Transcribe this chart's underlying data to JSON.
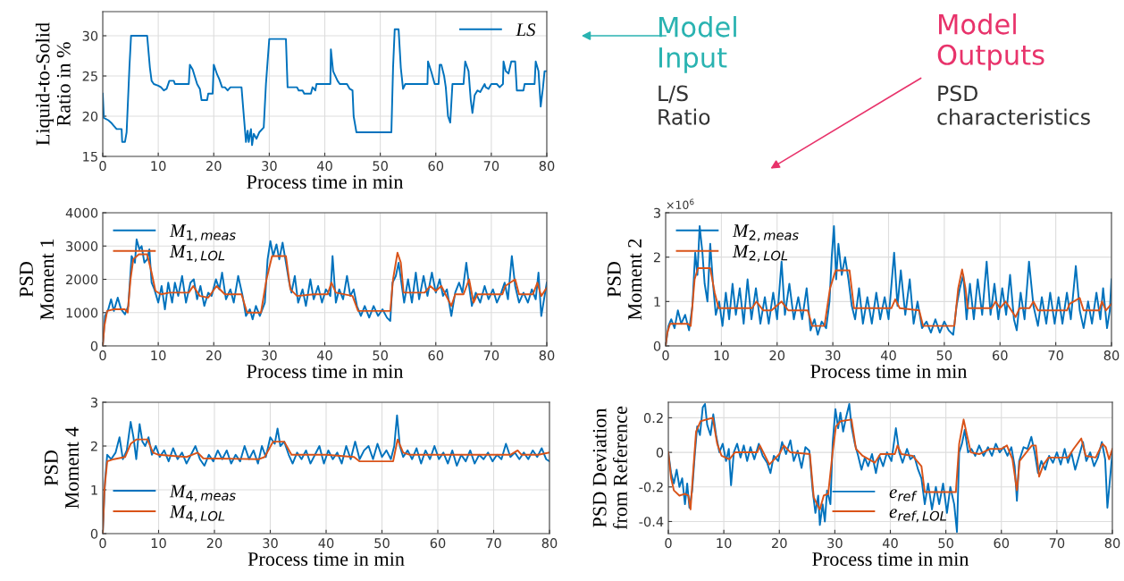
{
  "chart_data": [
    {
      "type": "line",
      "ylabel": "Liquid-to-Solid\nRatio in %",
      "xlabel": "Process time in min",
      "xlim": [
        0,
        80
      ],
      "xticks": [
        0,
        10,
        20,
        30,
        40,
        50,
        60,
        70,
        80
      ],
      "ylim": [
        15,
        33
      ],
      "yticks": [
        15,
        20,
        25,
        30
      ],
      "grid": true,
      "legend": "top right",
      "line_style": "solid",
      "series": [
        {
          "name": "LS",
          "color": "#0072bd",
          "x": [
            0,
            0.2,
            1,
            1.5,
            2,
            2.5,
            3.4,
            3.5,
            4,
            4.3,
            4.8,
            5.1,
            8,
            8.5,
            8.8,
            9.2,
            10,
            10.5,
            11,
            11.5,
            12,
            12.8,
            13,
            15.5,
            15.7,
            16.2,
            17,
            17.5,
            17.8,
            18.8,
            19,
            19.8,
            20,
            20.6,
            21,
            21.5,
            22,
            22.5,
            23,
            25,
            25.3,
            25.8,
            26.1,
            26.3,
            26.7,
            26.9,
            27.2,
            27.7,
            28.2,
            29,
            29.4,
            30,
            33,
            33.3,
            35,
            35.3,
            36,
            36.3,
            37.5,
            37.8,
            38.3,
            38.5,
            41,
            41.1,
            41.5,
            42.3,
            42.7,
            44,
            44.5,
            45,
            45.2,
            45.7,
            52,
            52.3,
            52.6,
            53.3,
            53.7,
            54.1,
            54.5,
            58.5,
            58.6,
            59.2,
            59.8,
            60.5,
            60.7,
            61,
            61.5,
            61.8,
            62.2,
            62.6,
            63,
            65,
            65.3,
            65.9,
            66.3,
            66.6,
            67,
            67.5,
            68,
            68.8,
            69,
            69.5,
            70,
            71,
            71.5,
            72.1,
            72.2,
            72.6,
            73.1,
            73.6,
            74.3,
            74.6,
            75.8,
            76,
            77.8,
            78,
            78.5,
            78.9,
            79.3,
            79.6,
            80
          ],
          "values": [
            22.8,
            19.8,
            19.5,
            19.2,
            18.8,
            18.4,
            18.4,
            16.8,
            16.8,
            18,
            26,
            30,
            30,
            26,
            24.4,
            24,
            23.8,
            23.6,
            23.2,
            23.4,
            24.4,
            24.4,
            24,
            24,
            26.4,
            25.8,
            24,
            23.4,
            22,
            22,
            22.8,
            22.8,
            26.4,
            25.2,
            24.6,
            23.6,
            23.6,
            23.2,
            23.6,
            23.6,
            21,
            16.8,
            18.2,
            16.8,
            18.4,
            16.4,
            17.8,
            17.2,
            18,
            18.6,
            24,
            29.6,
            29.6,
            23.6,
            23.6,
            23.2,
            23.2,
            22.8,
            22.8,
            23.6,
            23.2,
            24,
            24,
            28.3,
            25.6,
            24.4,
            24,
            24,
            23.4,
            23.2,
            20,
            18,
            18,
            26,
            30.8,
            30.8,
            26,
            23.4,
            24,
            24,
            26.8,
            25.5,
            24,
            24,
            26.4,
            26.4,
            25,
            23.6,
            20,
            19.2,
            24,
            24,
            26.8,
            25.6,
            22,
            20.4,
            22.6,
            23.2,
            23,
            24,
            23.6,
            23.4,
            24,
            24,
            23.6,
            24,
            26.8,
            25.6,
            25.3,
            26.8,
            26.8,
            23.2,
            23.2,
            24,
            24,
            26.8,
            25.6,
            21.2,
            23.5,
            25.6,
            25.6
          ]
        }
      ]
    },
    {
      "type": "line",
      "ylabel": "PSD\nMoment 1",
      "xlabel": "Process time in min",
      "xlim": [
        0,
        80
      ],
      "xticks": [
        0,
        10,
        20,
        30,
        40,
        50,
        60,
        70,
        80
      ],
      "ylim": [
        0,
        4000
      ],
      "yticks": [
        0,
        1000,
        2000,
        3000,
        4000
      ],
      "grid": true,
      "legend": "top left",
      "line_style": "solid",
      "series": [
        {
          "name": "M$_{1,meas}$",
          "color": "#0072bd",
          "x": [
            0,
            0.4,
            1,
            1.5,
            2,
            2.7,
            3.3,
            4,
            4.6,
            5.2,
            5.8,
            6.1,
            6.6,
            7,
            7.5,
            8,
            8.4,
            8.8,
            9.3,
            10,
            10.6,
            11.2,
            11.8,
            12.5,
            13,
            13.6,
            14.3,
            15,
            15.8,
            16.4,
            17,
            17.6,
            18.3,
            19,
            19.6,
            20.4,
            21,
            21.5,
            22.2,
            23,
            23.6,
            24.4,
            25.2,
            25.8,
            26.5,
            27,
            27.6,
            28.3,
            29.2,
            29.7,
            30.2,
            30.7,
            31.3,
            31.8,
            32.4,
            33,
            33.6,
            34,
            34.6,
            35.2,
            36,
            36.6,
            37.4,
            38,
            38.8,
            39.5,
            40.2,
            41,
            41.4,
            42,
            42.6,
            43.3,
            44,
            44.6,
            45.2,
            45.8,
            46.5,
            47.2,
            48,
            48.8,
            49.6,
            50.4,
            51.2,
            51.8,
            52.2,
            52.8,
            53.3,
            53.8,
            54.3,
            55,
            55.7,
            56.4,
            57,
            57.8,
            58.5,
            59.3,
            60,
            60.7,
            61.3,
            62,
            62.8,
            63.5,
            64.2,
            64.8,
            65.5,
            66,
            66.5,
            67.2,
            68,
            68.8,
            69.5,
            70.3,
            71,
            71.8,
            72.4,
            73,
            73.7,
            74.3,
            75,
            75.8,
            76.6,
            77.3,
            78,
            78.5,
            79,
            79.5,
            80
          ],
          "values": [
            0,
            900,
            1100,
            1400,
            1050,
            1450,
            1100,
            950,
            1200,
            2700,
            2500,
            3200,
            2900,
            3000,
            2500,
            2600,
            2900,
            1900,
            1700,
            1300,
            1800,
            1100,
            1900,
            1300,
            1900,
            1500,
            2100,
            1300,
            1900,
            2000,
            1400,
            1800,
            1200,
            1600,
            1500,
            2000,
            1700,
            2200,
            1400,
            1700,
            1300,
            2100,
            1500,
            900,
            1100,
            800,
            1200,
            900,
            1300,
            2600,
            3150,
            2700,
            3050,
            2600,
            3100,
            2500,
            1900,
            1600,
            2100,
            1300,
            1700,
            1200,
            2000,
            1400,
            1800,
            1300,
            1700,
            1500,
            2700,
            1300,
            1700,
            1400,
            2100,
            1500,
            1700,
            1200,
            900,
            1200,
            850,
            1200,
            900,
            1100,
            850,
            750,
            1900,
            2100,
            2500,
            1900,
            1300,
            2000,
            1300,
            2200,
            1400,
            2100,
            1500,
            2200,
            1600,
            2000,
            1500,
            1700,
            900,
            1600,
            1900,
            1600,
            2500,
            1800,
            1200,
            1600,
            1300,
            1800,
            1400,
            1700,
            1300,
            1600,
            1900,
            1400,
            2700,
            1800,
            1300,
            1600,
            1300,
            1700,
            1400,
            2200,
            900,
            1400,
            1900
          ]
        },
        {
          "name": "M$_{1,LOL}$",
          "color": "#d95319",
          "x": [
            0,
            0.3,
            0.8,
            2,
            4,
            4.5,
            5,
            5.5,
            6.5,
            8,
            8.8,
            9.5,
            10.5,
            12,
            15.5,
            16.3,
            17.5,
            19,
            20.5,
            22,
            25,
            26,
            28.5,
            29.5,
            30.5,
            33,
            33.8,
            35,
            38,
            40.5,
            41.2,
            42,
            45,
            46,
            51.8,
            52.3,
            53.1,
            53.7,
            54.2,
            58,
            59,
            60,
            61,
            62.8,
            63.5,
            65,
            66,
            66.8,
            67.5,
            72,
            72.5,
            74.3,
            75,
            77.5,
            78.3,
            79,
            80
          ],
          "values": [
            0,
            600,
            1050,
            1100,
            1100,
            1000,
            2000,
            2600,
            2750,
            2750,
            2200,
            1650,
            1550,
            1600,
            1600,
            1800,
            1500,
            1450,
            1800,
            1550,
            1550,
            1000,
            1000,
            2000,
            2700,
            2700,
            1700,
            1500,
            1550,
            1550,
            1900,
            1600,
            1500,
            1050,
            1050,
            2000,
            2800,
            2500,
            1600,
            1600,
            1800,
            1650,
            1800,
            1200,
            1550,
            1550,
            2000,
            1300,
            1550,
            1550,
            1800,
            2000,
            1550,
            1550,
            1900,
            1500,
            1750
          ]
        }
      ]
    },
    {
      "type": "line",
      "ylabel": "PSD\nMoment 2",
      "xlabel": "Process time in min",
      "annotations": [
        "×10$^{6}$"
      ],
      "xlim": [
        0,
        80
      ],
      "xticks": [
        0,
        10,
        20,
        30,
        40,
        50,
        60,
        70,
        80
      ],
      "ylim": [
        0,
        3
      ],
      "yticks": [
        0,
        1,
        2,
        3
      ],
      "grid": true,
      "legend": "top left",
      "line_style": "solid",
      "series": [
        {
          "name": "M$_{2,meas}$",
          "color": "#0072bd",
          "x": [
            0,
            0.5,
            1,
            1.6,
            2.2,
            2.8,
            3.5,
            4.2,
            4.8,
            5.3,
            5.7,
            6.1,
            6.6,
            7,
            7.5,
            8,
            8.5,
            9,
            9.6,
            10.2,
            10.8,
            11.4,
            12,
            12.6,
            13.3,
            14,
            14.7,
            15.4,
            16.2,
            17,
            17.8,
            18.5,
            19.3,
            20,
            20.8,
            21.4,
            22.2,
            23,
            23.8,
            24.5,
            25.3,
            26,
            26.7,
            27.3,
            28,
            28.8,
            29.4,
            29.8,
            30.2,
            30.6,
            31,
            31.6,
            32.2,
            32.8,
            33.4,
            34,
            34.7,
            35.4,
            36.2,
            37,
            37.8,
            38.5,
            39.3,
            40,
            41,
            41.6,
            42.2,
            43,
            43.8,
            44.5,
            45.2,
            46,
            46.8,
            47.6,
            48.4,
            49.2,
            50,
            50.8,
            51.6,
            52.2,
            52.8,
            53.4,
            54,
            54.6,
            55.3,
            56,
            56.8,
            57.6,
            58.3,
            59,
            59.7,
            60.4,
            61.1,
            61.8,
            62.5,
            63,
            63.7,
            64.4,
            65.2,
            66,
            66.8,
            67.5,
            68.3,
            69,
            69.8,
            70.5,
            71.2,
            72,
            72.7,
            73.6,
            74.3,
            75,
            75.8,
            76.5,
            77.3,
            78,
            78.5,
            79.2,
            79.7,
            80
          ],
          "values": [
            0,
            0.45,
            0.6,
            0.4,
            0.8,
            0.5,
            0.7,
            0.35,
            0.9,
            2.1,
            1.6,
            2.7,
            2.1,
            1.4,
            1.0,
            2.3,
            1.4,
            0.7,
            1.0,
            0.45,
            1.2,
            0.6,
            1.4,
            0.7,
            1.3,
            0.5,
            1.5,
            0.6,
            1.3,
            0.5,
            1.1,
            0.5,
            1.2,
            0.6,
            1.9,
            0.7,
            1.4,
            0.6,
            1.1,
            0.6,
            1.3,
            0.35,
            0.6,
            0.25,
            0.55,
            0.4,
            1.0,
            2.0,
            2.7,
            1.5,
            2.3,
            1.6,
            2.0,
            1.5,
            0.9,
            0.6,
            1.3,
            0.5,
            1.1,
            0.5,
            1.2,
            0.6,
            1.1,
            0.6,
            2.1,
            0.9,
            1.7,
            0.7,
            1.5,
            0.5,
            1.0,
            0.4,
            0.55,
            0.3,
            0.6,
            0.3,
            0.55,
            0.35,
            0.25,
            0.9,
            1.3,
            1.6,
            0.6,
            1.4,
            0.6,
            1.5,
            0.7,
            1.9,
            0.7,
            1.4,
            0.6,
            1.3,
            0.7,
            1.6,
            0.6,
            0.35,
            1.2,
            0.6,
            1.9,
            0.9,
            0.45,
            1.1,
            0.5,
            1.2,
            0.5,
            1.1,
            0.5,
            1.2,
            0.6,
            1.8,
            0.8,
            0.4,
            1.0,
            0.5,
            1.2,
            0.6,
            1.3,
            0.4,
            0.8,
            1.5
          ]
        },
        {
          "name": "M$_{2,LOL}$",
          "color": "#d95319",
          "x": [
            0,
            0.3,
            0.8,
            4,
            4.5,
            5.2,
            5.8,
            8,
            8.8,
            9.5,
            15.5,
            16.3,
            17.5,
            19,
            20.8,
            22,
            25.5,
            26.3,
            28.5,
            29.5,
            30.5,
            33,
            33.8,
            40.5,
            41.2,
            42,
            45.5,
            46.2,
            51.8,
            52.5,
            53.2,
            53.8,
            54.2,
            58.5,
            59.2,
            60,
            61,
            62.8,
            63.5,
            65.3,
            66,
            66.8,
            72,
            72.5,
            74.3,
            75,
            77.8,
            78.3,
            79,
            80
          ],
          "values": [
            0,
            0.3,
            0.5,
            0.5,
            0.45,
            1.5,
            1.75,
            1.75,
            1.2,
            0.85,
            0.85,
            1.0,
            0.8,
            0.8,
            1.0,
            0.8,
            0.8,
            0.45,
            0.45,
            1.3,
            1.7,
            1.7,
            0.85,
            0.85,
            1.05,
            0.85,
            0.8,
            0.45,
            0.45,
            1.3,
            1.72,
            1.3,
            0.85,
            0.85,
            1.0,
            0.85,
            1.0,
            0.65,
            0.85,
            0.85,
            1.0,
            0.8,
            0.8,
            0.95,
            1.08,
            0.8,
            0.8,
            1.0,
            0.8,
            0.95
          ]
        }
      ]
    },
    {
      "type": "line",
      "ylabel": "PSD\nMoment 4",
      "xlabel": "Process time in min",
      "xlim": [
        0,
        80
      ],
      "xticks": [
        0,
        10,
        20,
        30,
        40,
        50,
        60,
        70,
        80
      ],
      "ylim": [
        0,
        3
      ],
      "yticks": [
        0,
        1,
        2,
        3
      ],
      "grid": true,
      "legend": "bottom left",
      "line_style": "solid",
      "series": [
        {
          "name": "M$_{4,meas}$",
          "color": "#0072bd",
          "x": [
            0,
            0.4,
            0.8,
            1.5,
            2.3,
            3,
            3.6,
            4.3,
            5,
            5.5,
            6,
            6.6,
            7.1,
            7.6,
            8.2,
            8.8,
            9.5,
            10.2,
            11,
            11.8,
            12.6,
            13.4,
            14.2,
            15,
            15.8,
            16.6,
            17.4,
            18.2,
            19,
            19.8,
            20.6,
            21.4,
            22.2,
            23,
            23.8,
            24.6,
            25.4,
            26.2,
            27,
            27.8,
            28.5,
            29.2,
            30,
            30.8,
            31.3,
            31.8,
            32.5,
            33.3,
            34,
            34.8,
            35.6,
            36.4,
            37.2,
            38,
            38.8,
            39.6,
            40.4,
            41.2,
            42,
            42.8,
            43.6,
            44.4,
            45.2,
            46,
            46.8,
            47.6,
            48.4,
            49.2,
            50,
            50.8,
            51.6,
            52.2,
            52.7,
            53.2,
            53.8,
            54.6,
            55.4,
            56.2,
            57,
            57.8,
            58.6,
            59.4,
            60.2,
            61,
            61.8,
            62.6,
            63.4,
            64.2,
            65,
            65.8,
            66.6,
            67.4,
            68.2,
            69,
            69.8,
            70.6,
            71.4,
            72.2,
            73,
            73.8,
            74.6,
            75.4,
            76.2,
            77,
            77.8,
            78.6,
            79.4,
            80
          ],
          "values": [
            0,
            1.2,
            1.8,
            1.7,
            1.85,
            2.2,
            1.7,
            1.9,
            2.55,
            2.2,
            1.7,
            2.5,
            2.1,
            2.0,
            2.2,
            1.8,
            2.0,
            1.75,
            1.9,
            1.65,
            1.95,
            1.7,
            1.85,
            1.6,
            1.8,
            2.0,
            1.7,
            1.55,
            1.8,
            1.65,
            1.9,
            1.7,
            1.9,
            1.6,
            1.8,
            1.65,
            2.0,
            1.7,
            1.9,
            1.6,
            2.0,
            1.75,
            2.2,
            2.05,
            2.4,
            2.0,
            2.1,
            1.8,
            1.6,
            1.85,
            1.7,
            1.9,
            1.6,
            1.8,
            2.0,
            1.6,
            1.9,
            1.7,
            1.85,
            1.6,
            2.0,
            1.7,
            2.1,
            1.7,
            1.9,
            2.0,
            1.7,
            2.05,
            1.75,
            1.9,
            1.7,
            2.0,
            2.7,
            2.0,
            1.75,
            1.9,
            1.7,
            1.95,
            1.6,
            1.9,
            1.7,
            2.0,
            1.7,
            1.85,
            1.6,
            1.9,
            1.55,
            1.8,
            1.65,
            1.9,
            1.6,
            1.8,
            1.7,
            1.85,
            1.65,
            1.8,
            1.7,
            2.05,
            1.75,
            1.85,
            1.7,
            1.85,
            1.7,
            1.9,
            1.75,
            1.95,
            1.7,
            1.65
          ]
        },
        {
          "name": "M$_{4,LOL}$",
          "color": "#d95319",
          "x": [
            0,
            0.3,
            0.8,
            2,
            4,
            5,
            6,
            8,
            9,
            10,
            15,
            17,
            18,
            28,
            29,
            30.5,
            32.5,
            33.8,
            40,
            45,
            46,
            52,
            52.8,
            53.8,
            55,
            60,
            65,
            70,
            73,
            74.3,
            75,
            78,
            80
          ],
          "values": [
            0,
            1.0,
            1.65,
            1.7,
            1.75,
            2.05,
            2.15,
            2.15,
            1.85,
            1.8,
            1.75,
            1.85,
            1.72,
            1.7,
            1.75,
            2.1,
            2.1,
            1.8,
            1.8,
            1.75,
            1.65,
            1.65,
            2.15,
            1.85,
            1.8,
            1.8,
            1.8,
            1.8,
            1.8,
            1.9,
            1.8,
            1.8,
            1.85
          ]
        }
      ]
    },
    {
      "type": "line",
      "ylabel": "PSD Deviation\nfrom Reference",
      "xlabel": "Process time in min",
      "xlim": [
        0,
        80
      ],
      "xticks": [
        0,
        10,
        20,
        30,
        40,
        50,
        60,
        70,
        80
      ],
      "ylim": [
        -0.47,
        0.29
      ],
      "yticks": [
        -0.4,
        -0.2,
        0,
        0.2
      ],
      "grid": true,
      "legend": "bottom",
      "line_style": "solid",
      "series": [
        {
          "name": "e$_{ref}$",
          "color": "#0072bd",
          "x": [
            0,
            0.5,
            1,
            1.5,
            2,
            2.5,
            3,
            3.4,
            3.8,
            4.3,
            4.8,
            5.2,
            5.7,
            6.2,
            6.6,
            7,
            7.6,
            8.1,
            8.6,
            9.2,
            9.8,
            10.4,
            10.9,
            11.3,
            11.8,
            12.4,
            13,
            13.6,
            14.2,
            14.8,
            15.5,
            16.3,
            17,
            17.8,
            18.4,
            19,
            19.8,
            20.5,
            21.2,
            22,
            22.6,
            23.3,
            24,
            24.7,
            25.4,
            26,
            26.5,
            27,
            27.3,
            27.8,
            28.2,
            28.6,
            29.2,
            29.6,
            30.1,
            30.6,
            31,
            31.5,
            32,
            32.6,
            33,
            33.6,
            34.2,
            34.8,
            35.4,
            36,
            36.7,
            37.4,
            38,
            38.7,
            39.4,
            40.2,
            41,
            41.6,
            42.2,
            43,
            43.6,
            44.3,
            45,
            45.6,
            46.2,
            46.8,
            47.5,
            48.2,
            48.8,
            49.5,
            50.2,
            50.8,
            51.5,
            52,
            52.4,
            52.9,
            53.4,
            54,
            54.6,
            55.3,
            56,
            56.8,
            57.6,
            58.3,
            59,
            59.7,
            60.4,
            61.1,
            61.8,
            62.4,
            62.8,
            63.2,
            64,
            64.7,
            65.4,
            66,
            66.6,
            67.2,
            67.9,
            68.6,
            69.3,
            70,
            70.7,
            71.4,
            72,
            72.6,
            73.3,
            74,
            74.7,
            75.3,
            76,
            76.7,
            77.4,
            78.1,
            78.7,
            79.1,
            79.5,
            80
          ],
          "values": [
            0,
            -0.12,
            -0.18,
            -0.1,
            -0.2,
            -0.15,
            -0.3,
            -0.18,
            -0.32,
            -0.22,
            0.0,
            0.15,
            0.1,
            0.26,
            0.28,
            0.16,
            0.1,
            0.22,
            0.1,
            0.0,
            0.05,
            -0.05,
            0.02,
            -0.19,
            0.0,
            0.05,
            -0.03,
            0.04,
            -0.05,
            0.03,
            -0.04,
            0.05,
            -0.02,
            -0.06,
            -0.12,
            -0.02,
            -0.05,
            0.06,
            -0.01,
            0.07,
            -0.05,
            0.01,
            -0.09,
            0.03,
            0.01,
            -0.22,
            -0.35,
            -0.25,
            -0.42,
            -0.3,
            -0.4,
            -0.22,
            -0.3,
            0.05,
            0.25,
            0.14,
            0.23,
            0.12,
            0.2,
            0.28,
            0.15,
            0.05,
            -0.02,
            -0.1,
            -0.03,
            -0.08,
            -0.01,
            -0.12,
            -0.02,
            -0.08,
            0.0,
            -0.05,
            0.14,
            0.0,
            -0.06,
            0.02,
            -0.04,
            -0.02,
            -0.1,
            -0.15,
            -0.3,
            -0.18,
            -0.33,
            -0.2,
            -0.3,
            -0.18,
            -0.35,
            -0.2,
            -0.3,
            -0.46,
            0.0,
            0.05,
            0.13,
            0.0,
            0.02,
            -0.02,
            0.04,
            -0.02,
            0.03,
            -0.02,
            0.05,
            0.0,
            0.03,
            -0.02,
            0.03,
            -0.08,
            -0.28,
            -0.05,
            0.03,
            0.02,
            0.09,
            0.0,
            -0.12,
            -0.05,
            -0.1,
            -0.02,
            -0.06,
            0.0,
            -0.07,
            0.02,
            -0.06,
            0.0,
            -0.1,
            -0.02,
            0.06,
            -0.05,
            0.0,
            -0.08,
            -0.03,
            0.06,
            -0.04,
            -0.32,
            -0.18,
            0.0
          ]
        },
        {
          "name": "e$_{ref,LOL}$",
          "color": "#d95319",
          "x": [
            0,
            0.5,
            1,
            2,
            3,
            3.6,
            4,
            4.5,
            5,
            5.8,
            8,
            8.8,
            9.6,
            11,
            12,
            16,
            16.5,
            18.2,
            20,
            20.8,
            22,
            25.5,
            26.2,
            26.8,
            27.3,
            28,
            28.8,
            29.6,
            30.2,
            31,
            33,
            33.8,
            35,
            37.2,
            38.2,
            40.8,
            41.3,
            42,
            44,
            45.6,
            46.2,
            51.8,
            52.4,
            53.2,
            53.8,
            54.5,
            56,
            58,
            60,
            61,
            62,
            62.8,
            63.3,
            64.5,
            65.5,
            66.2,
            66.8,
            67.6,
            68.5,
            72,
            73,
            74.4,
            75.2,
            77,
            78.2,
            78.8,
            79.4,
            80
          ],
          "values": [
            0,
            -0.15,
            -0.22,
            -0.25,
            -0.24,
            -0.25,
            -0.33,
            -0.1,
            0.12,
            0.18,
            0.2,
            0.05,
            -0.02,
            -0.04,
            0,
            0,
            0.04,
            -0.07,
            -0.01,
            0.04,
            0,
            -0.01,
            -0.26,
            -0.3,
            -0.33,
            -0.25,
            -0.24,
            0,
            0.15,
            0.18,
            0.19,
            0.02,
            -0.02,
            -0.06,
            -0.01,
            -0.01,
            0.04,
            -0.01,
            -0.02,
            -0.08,
            -0.23,
            -0.23,
            0.05,
            0.19,
            0.1,
            0,
            -0.01,
            0.02,
            0.02,
            0.04,
            -0.04,
            -0.22,
            -0.05,
            0.0,
            0.04,
            0.04,
            -0.14,
            -0.07,
            -0.03,
            -0.03,
            0.02,
            0.08,
            -0.02,
            -0.03,
            0.05,
            0.03,
            -0.04,
            0.02
          ]
        }
      ]
    },
    {
      "type": "other",
      "annotations": [
        "Model\nInput",
        "L/S\nRatio",
        "Model\nOutputs",
        "PSD\ncharacteristics"
      ],
      "colors": [
        "#2ab3b1",
        "#333333",
        "#e8336b",
        "#333333"
      ]
    }
  ]
}
